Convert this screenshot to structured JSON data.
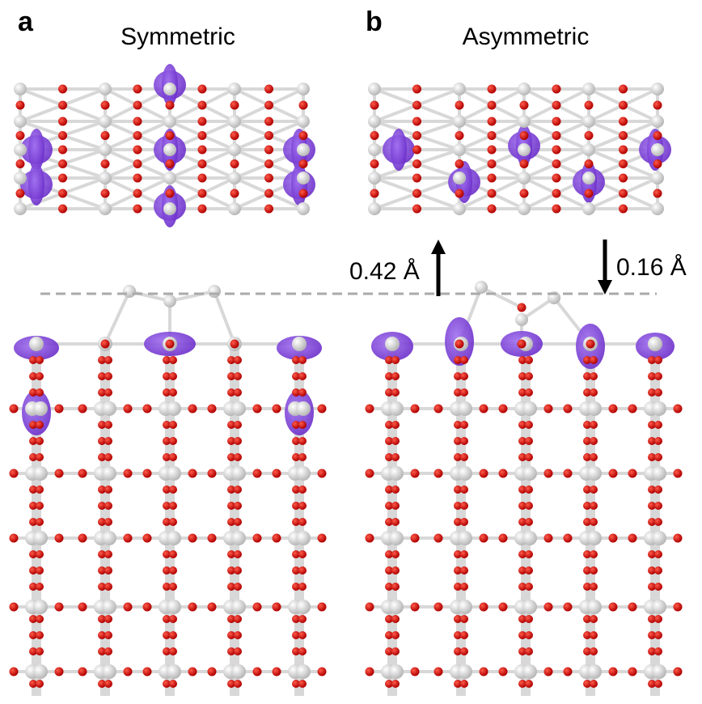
{
  "panels": [
    {
      "label": "a",
      "title": "Symmetric"
    },
    {
      "label": "b",
      "title": "Asymmetric"
    }
  ],
  "displacements": [
    "0.42 Å",
    "0.16 Å"
  ]
}
